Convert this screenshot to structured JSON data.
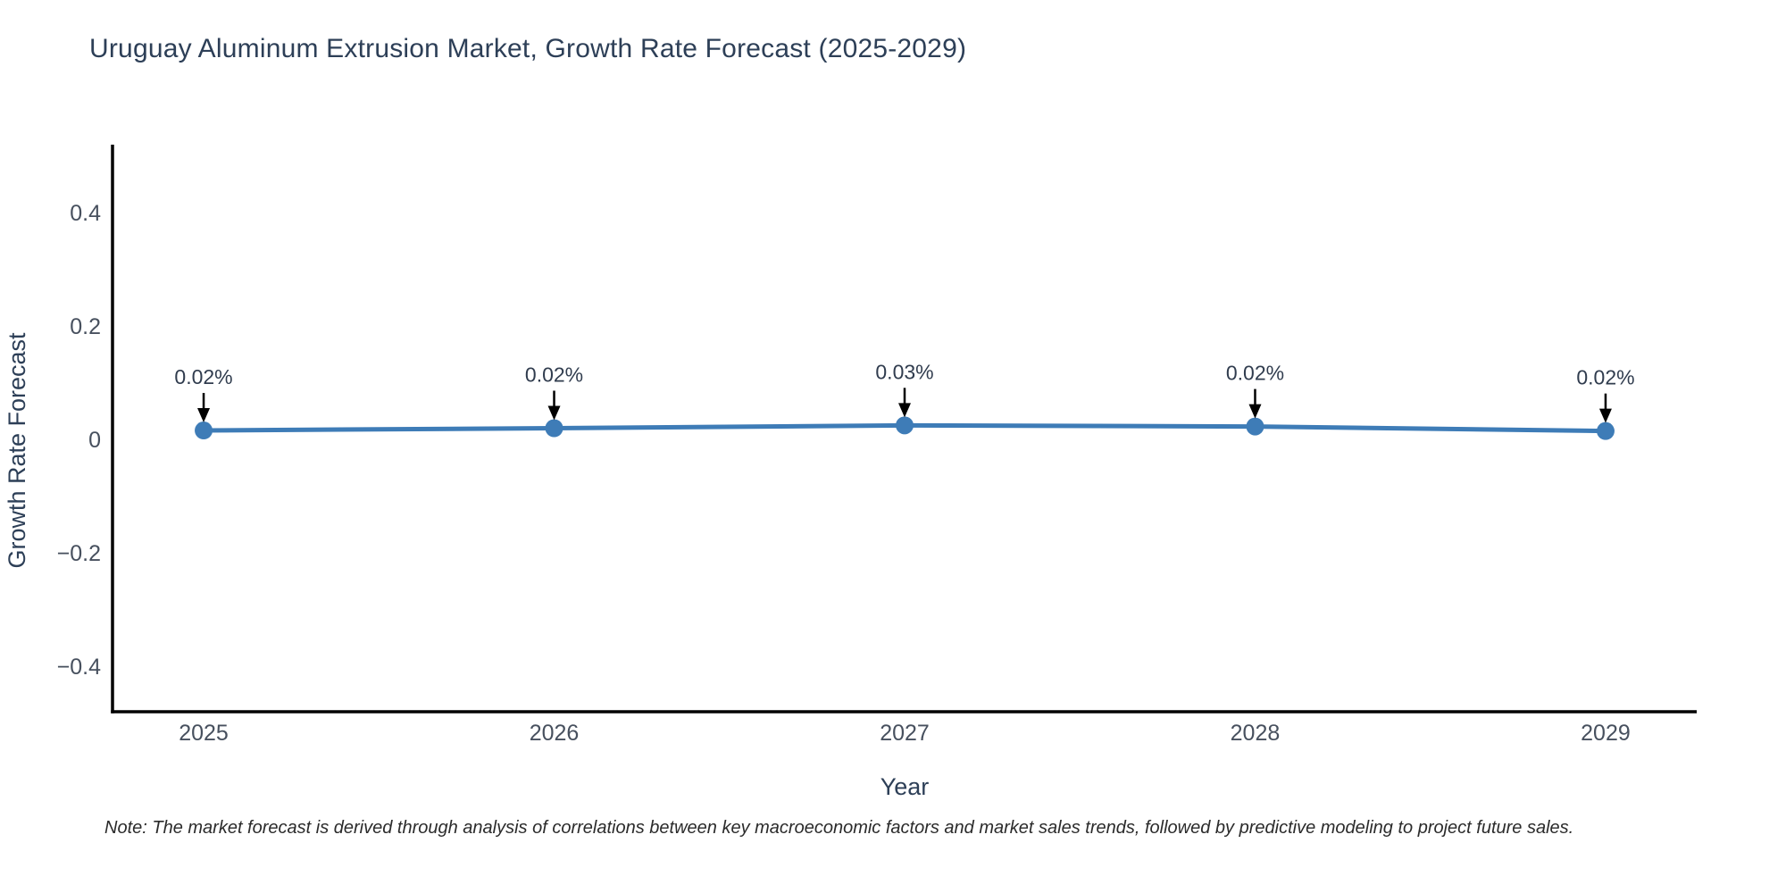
{
  "title": "Uruguay Aluminum Extrusion Market, Growth Rate Forecast (2025-2029)",
  "note": "Note: The market forecast is derived through analysis of correlations between key macroeconomic factors and market sales trends, followed by predictive modeling to project future sales.",
  "chart_data": {
    "type": "line",
    "title": "Uruguay Aluminum Extrusion Market, Growth Rate Forecast (2025-2029)",
    "x": [
      2025,
      2026,
      2027,
      2028,
      2029
    ],
    "series": [
      {
        "name": "Growth Rate Forecast",
        "values": [
          0.016,
          0.02,
          0.025,
          0.023,
          0.015
        ],
        "point_labels": [
          "0.02%",
          "0.02%",
          "0.03%",
          "0.02%",
          "0.02%"
        ]
      }
    ],
    "xlabel": "Year",
    "ylabel": "Growth Rate Forecast",
    "xticks": [
      2025,
      2026,
      2027,
      2028,
      2029
    ],
    "xtick_labels": [
      "2025",
      "2026",
      "2027",
      "2028",
      "2029"
    ],
    "yticks": [
      0.4,
      0.2,
      0,
      -0.2,
      -0.4
    ],
    "ytick_labels": [
      "0.4",
      "0.2",
      "0",
      "−0.2",
      "−0.4"
    ],
    "xlim": [
      2024.74,
      2029.26
    ],
    "ylim": [
      -0.48,
      0.52
    ],
    "grid": false,
    "legend": "none",
    "colors": {
      "line": "#3e7cb7",
      "marker": "#3e7cb7",
      "axis": "#000000",
      "arrow": "#000000",
      "title": "#2d3f57",
      "axis_title": "#2d3f57",
      "tick": "#47505e",
      "annotation": "#303c4e"
    }
  }
}
